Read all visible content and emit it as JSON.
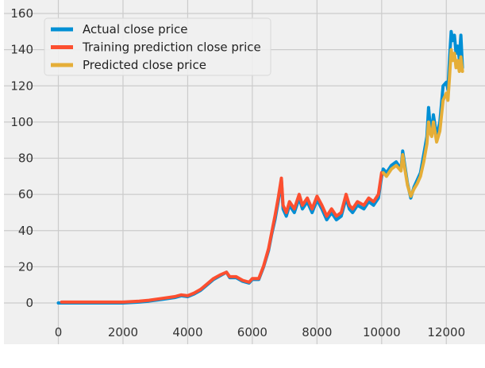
{
  "chart_data": {
    "type": "line",
    "title": "",
    "xlabel": "",
    "ylabel": "",
    "xlim": [
      -700,
      13000
    ],
    "ylim": [
      -7,
      160
    ],
    "grid": true,
    "legend_position": "top-left",
    "x_ticks": [
      0,
      2000,
      4000,
      6000,
      8000,
      10000,
      12000
    ],
    "y_ticks": [
      0,
      20,
      40,
      60,
      80,
      100,
      120,
      140,
      160
    ],
    "series": [
      {
        "name": "Actual close price",
        "color": "#008fd5",
        "x": [
          0,
          500,
          1000,
          1500,
          2000,
          2500,
          2800,
          3200,
          3600,
          3800,
          4000,
          4200,
          4400,
          4600,
          4800,
          5000,
          5200,
          5300,
          5500,
          5700,
          5900,
          6000,
          6200,
          6350,
          6500,
          6600,
          6700,
          6800,
          6900,
          6950,
          7050,
          7150,
          7300,
          7450,
          7550,
          7700,
          7850,
          8000,
          8150,
          8300,
          8450,
          8600,
          8750,
          8900,
          9000,
          9100,
          9250,
          9450,
          9600,
          9750,
          9900,
          10000,
          10050,
          10150,
          10300,
          10450,
          10600,
          10650,
          10700,
          10800,
          10900,
          11000,
          11100,
          11200,
          11300,
          11400,
          11450,
          11500,
          11550,
          11600,
          11700,
          11800,
          11900,
          12000,
          12050,
          12100,
          12150,
          12200,
          12250,
          12300,
          12350,
          12400,
          12450,
          12500
        ],
        "y": [
          0,
          0,
          0,
          0,
          0,
          0.5,
          1,
          2,
          3,
          4,
          3.5,
          5,
          7,
          10,
          13,
          15,
          17,
          14,
          14,
          12,
          11,
          13,
          13,
          20,
          29,
          38,
          46,
          56,
          68,
          52,
          48,
          54,
          50,
          58,
          52,
          56,
          50,
          57,
          52,
          46,
          50,
          46,
          48,
          58,
          52,
          50,
          54,
          52,
          56,
          54,
          58,
          70,
          74,
          72,
          76,
          78,
          74,
          84,
          78,
          66,
          58,
          64,
          68,
          72,
          82,
          92,
          108,
          98,
          95,
          104,
          92,
          100,
          120,
          122,
          118,
          135,
          150,
          145,
          148,
          138,
          142,
          135,
          148,
          130
        ]
      },
      {
        "name": "Training prediction close price",
        "color": "#fc4f30",
        "x": [
          100,
          500,
          1000,
          1500,
          2000,
          2500,
          2800,
          3200,
          3600,
          3800,
          4000,
          4200,
          4400,
          4600,
          4800,
          5000,
          5200,
          5300,
          5500,
          5700,
          5900,
          6000,
          6200,
          6350,
          6500,
          6600,
          6700,
          6800,
          6900,
          6950,
          7050,
          7150,
          7300,
          7450,
          7550,
          7700,
          7850,
          8000,
          8150,
          8300,
          8450,
          8600,
          8750,
          8900,
          9000,
          9100,
          9250,
          9450,
          9600,
          9750,
          9900,
          10000
        ],
        "y": [
          0.5,
          0.5,
          0.5,
          0.5,
          0.5,
          1,
          1.5,
          2.5,
          3.5,
          4.5,
          4,
          5.5,
          7.5,
          10.5,
          13.5,
          15.5,
          17,
          14.5,
          14.5,
          12.5,
          11.5,
          13.5,
          13.5,
          20.5,
          30,
          39,
          48,
          58,
          69,
          54,
          50,
          56,
          52,
          60,
          54,
          58,
          52,
          59,
          54,
          48,
          52,
          48,
          50,
          60,
          54,
          52,
          56,
          54,
          58,
          56,
          60,
          72
        ]
      },
      {
        "name": "Predicted close price",
        "color": "#e5ae38",
        "x": [
          10050,
          10150,
          10300,
          10450,
          10600,
          10650,
          10700,
          10800,
          10900,
          11000,
          11100,
          11200,
          11300,
          11400,
          11450,
          11500,
          11550,
          11600,
          11700,
          11800,
          11900,
          12000,
          12050,
          12100,
          12150,
          12200,
          12250,
          12300,
          12350,
          12400,
          12450,
          12500
        ],
        "y": [
          72,
          70,
          74,
          76,
          73,
          82,
          76,
          65,
          59,
          63,
          66,
          70,
          78,
          88,
          100,
          94,
          92,
          100,
          89,
          95,
          112,
          116,
          112,
          125,
          140,
          134,
          138,
          130,
          134,
          128,
          136,
          128
        ]
      }
    ]
  }
}
